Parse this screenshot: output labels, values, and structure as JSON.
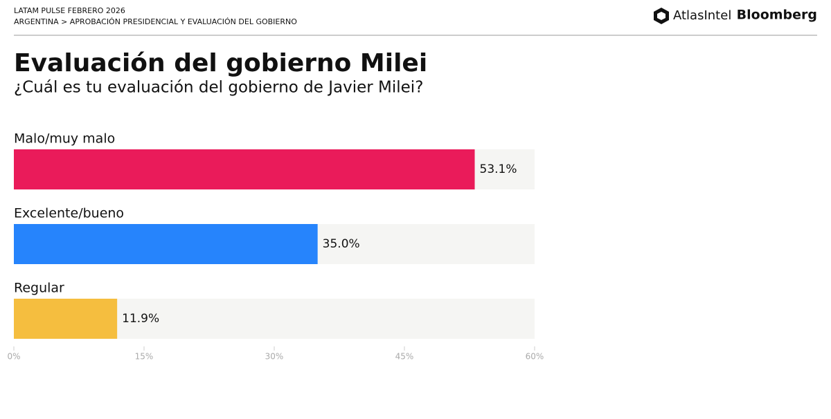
{
  "chart_data": {
    "type": "hbar",
    "header": [
      "LATAM PULSE FEBRERO 2026",
      "ARGENTINA > APROBACIÓN PRESIDENCIAL Y EVALUACIÓN DEL GOBIERNO"
    ],
    "logos": [
      "AtlasIntel",
      "Bloomberg"
    ],
    "title": "Evaluación del gobierno Milei",
    "subtitle": "¿Cuál es tu evaluación del gobierno de Javier Milei?",
    "categories": [
      "Malo/muy malo",
      "Excelente/bueno",
      "Regular"
    ],
    "values": [
      53.1,
      35.0,
      11.9
    ],
    "value_labels": [
      "53.1%",
      "35.0%",
      "11.9%"
    ],
    "colors": [
      "#ea1b5a",
      "#2684fc",
      "#f5be3f"
    ],
    "xlim": [
      0,
      60
    ],
    "xticks": [
      {
        "value": 0,
        "label": "0%"
      },
      {
        "value": 15,
        "label": "15%"
      },
      {
        "value": 30,
        "label": "30%"
      },
      {
        "value": 45,
        "label": "45%"
      },
      {
        "value": 60,
        "label": "60%"
      }
    ]
  }
}
